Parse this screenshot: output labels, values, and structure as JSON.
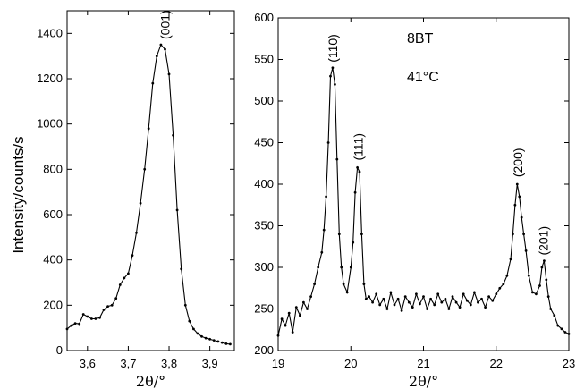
{
  "ylabel": "Intensity/counts/s",
  "chart_data": [
    {
      "type": "line",
      "xlabel": "2θ/°",
      "xlim": [
        3.55,
        3.96
      ],
      "ylim": [
        0,
        1500
      ],
      "xticks": [
        3.6,
        3.7,
        3.8,
        3.9
      ],
      "xtick_labels": [
        "3,6",
        "3,7",
        "3,8",
        "3,9"
      ],
      "yticks": [
        0,
        200,
        400,
        600,
        800,
        1000,
        1200,
        1400
      ],
      "ytick_labels": [
        "0",
        "200",
        "400",
        "600",
        "800",
        "1000",
        "1200",
        "1400"
      ],
      "annotations": [
        {
          "text": "(001)",
          "x": 3.79,
          "y": 1350
        }
      ],
      "x": [
        3.55,
        3.56,
        3.57,
        3.58,
        3.59,
        3.6,
        3.61,
        3.62,
        3.63,
        3.64,
        3.65,
        3.66,
        3.67,
        3.68,
        3.69,
        3.7,
        3.71,
        3.72,
        3.73,
        3.74,
        3.75,
        3.76,
        3.77,
        3.78,
        3.79,
        3.8,
        3.81,
        3.82,
        3.83,
        3.84,
        3.85,
        3.86,
        3.87,
        3.88,
        3.89,
        3.9,
        3.91,
        3.92,
        3.93,
        3.94,
        3.95
      ],
      "y": [
        95,
        110,
        120,
        118,
        160,
        150,
        140,
        140,
        145,
        180,
        195,
        200,
        230,
        290,
        320,
        340,
        420,
        520,
        650,
        800,
        980,
        1180,
        1300,
        1350,
        1330,
        1220,
        950,
        620,
        360,
        200,
        130,
        95,
        75,
        62,
        55,
        50,
        45,
        40,
        35,
        30,
        28
      ]
    },
    {
      "type": "line",
      "xlabel": "2θ/°",
      "xlim": [
        19,
        23
      ],
      "ylim": [
        200,
        600
      ],
      "xticks": [
        19,
        20,
        21,
        22,
        23
      ],
      "yticks": [
        200,
        250,
        300,
        350,
        400,
        450,
        500,
        550,
        600
      ],
      "annotations": [
        {
          "text": "(110)",
          "x": 19.75,
          "y": 540
        },
        {
          "text": "(111)",
          "x": 20.1,
          "y": 422
        },
        {
          "text": "(200)",
          "x": 22.3,
          "y": 402
        },
        {
          "text": "(201)",
          "x": 22.65,
          "y": 308
        }
      ],
      "labels": [
        "8BT",
        "41°C"
      ],
      "x": [
        19.0,
        19.05,
        19.1,
        19.15,
        19.2,
        19.25,
        19.3,
        19.35,
        19.4,
        19.45,
        19.5,
        19.55,
        19.6,
        19.63,
        19.66,
        19.69,
        19.72,
        19.75,
        19.78,
        19.81,
        19.84,
        19.87,
        19.9,
        19.95,
        20.0,
        20.03,
        20.06,
        20.09,
        20.12,
        20.15,
        20.18,
        20.21,
        20.25,
        20.3,
        20.35,
        20.4,
        20.45,
        20.5,
        20.55,
        20.6,
        20.65,
        20.7,
        20.75,
        20.8,
        20.85,
        20.9,
        20.95,
        21.0,
        21.05,
        21.1,
        21.15,
        21.2,
        21.25,
        21.3,
        21.35,
        21.4,
        21.45,
        21.5,
        21.55,
        21.6,
        21.65,
        21.7,
        21.75,
        21.8,
        21.85,
        21.9,
        21.95,
        22.0,
        22.05,
        22.1,
        22.15,
        22.2,
        22.23,
        22.26,
        22.29,
        22.32,
        22.35,
        22.38,
        22.41,
        22.45,
        22.5,
        22.55,
        22.6,
        22.63,
        22.66,
        22.69,
        22.72,
        22.75,
        22.8,
        22.85,
        22.9,
        22.95,
        23.0
      ],
      "y": [
        218,
        238,
        230,
        245,
        222,
        252,
        242,
        258,
        250,
        265,
        280,
        300,
        318,
        345,
        385,
        450,
        530,
        540,
        520,
        430,
        340,
        300,
        280,
        270,
        300,
        330,
        390,
        420,
        415,
        340,
        280,
        262,
        265,
        258,
        268,
        255,
        262,
        250,
        270,
        255,
        262,
        248,
        265,
        258,
        252,
        268,
        256,
        265,
        250,
        262,
        255,
        268,
        258,
        262,
        250,
        265,
        258,
        252,
        268,
        260,
        255,
        270,
        258,
        262,
        252,
        265,
        260,
        268,
        275,
        280,
        290,
        310,
        340,
        375,
        400,
        385,
        360,
        340,
        320,
        290,
        270,
        268,
        278,
        300,
        308,
        285,
        265,
        250,
        242,
        230,
        226,
        222,
        220
      ]
    }
  ]
}
